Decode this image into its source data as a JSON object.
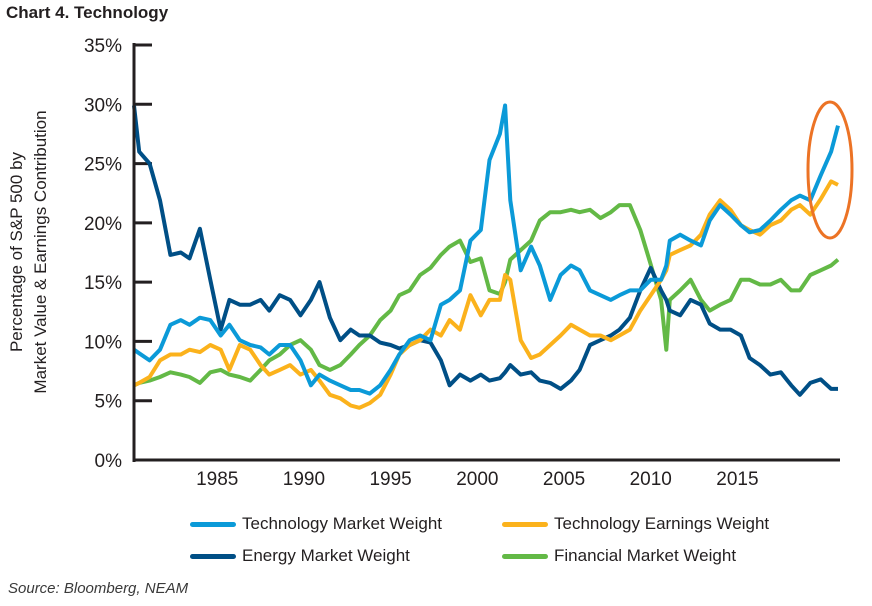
{
  "title": "Chart 4. Technology",
  "source": "Source: Bloomberg, NEAM",
  "chart_data": {
    "type": "line",
    "title": "Chart 4. Technology",
    "ylabel": [
      "Percentage of S&P 500 by",
      "Market Value & Earnings Contribution"
    ],
    "xlabel": "",
    "ylim": [
      0,
      35
    ],
    "xlim": [
      1980.2,
      2020.8
    ],
    "yticks": [
      "0%",
      "5%",
      "10%",
      "15%",
      "20%",
      "25%",
      "30%",
      "35%"
    ],
    "ytick_values": [
      0,
      5,
      10,
      15,
      20,
      25,
      30,
      35
    ],
    "xticks": [
      "1985",
      "1990",
      "1995",
      "2000",
      "2005",
      "2010",
      "2015"
    ],
    "xtick_values": [
      1985,
      1990,
      1995,
      2000,
      2005,
      2010,
      2015
    ],
    "grid": false,
    "legend_position": "bottom",
    "x": [
      1980.2,
      1980.5,
      1981.1,
      1981.7,
      1982.3,
      1982.9,
      1983.4,
      1984.0,
      1984.6,
      1985.2,
      1985.7,
      1986.3,
      1986.9,
      1987.5,
      1988.0,
      1988.6,
      1989.2,
      1989.8,
      1990.4,
      1990.9,
      1991.5,
      1992.1,
      1992.7,
      1993.2,
      1993.8,
      1994.4,
      1995.0,
      1995.5,
      1996.1,
      1996.7,
      1997.3,
      1997.9,
      1998.4,
      1999.0,
      1999.6,
      2000.2,
      2000.7,
      2001.3,
      2001.6,
      2001.9,
      2002.5,
      2003.1,
      2003.6,
      2004.2,
      2004.8,
      2005.4,
      2005.9,
      2006.5,
      2007.1,
      2007.7,
      2008.2,
      2008.8,
      2009.4,
      2010.0,
      2010.6,
      2010.9,
      2011.1,
      2011.7,
      2012.3,
      2012.9,
      2013.4,
      2014.0,
      2014.6,
      2015.2,
      2015.7,
      2016.3,
      2016.9,
      2017.5,
      2018.1,
      2018.6,
      2019.2,
      2019.8,
      2020.4,
      2020.8
    ],
    "series": [
      {
        "name": "Technology Market Weight",
        "color": "#0b9ad8",
        "values": [
          9.3,
          9.0,
          8.4,
          9.3,
          11.4,
          11.8,
          11.4,
          12.0,
          11.8,
          10.5,
          11.4,
          10.1,
          9.7,
          9.5,
          8.9,
          9.7,
          9.7,
          8.4,
          6.3,
          7.2,
          6.7,
          6.3,
          5.9,
          5.9,
          5.6,
          6.3,
          7.6,
          8.9,
          10.1,
          10.5,
          10.1,
          13.1,
          13.5,
          14.3,
          18.5,
          19.4,
          25.3,
          27.5,
          29.9,
          21.9,
          16.0,
          18.0,
          16.4,
          13.5,
          15.6,
          16.4,
          16.0,
          14.3,
          13.9,
          13.5,
          13.9,
          14.3,
          14.3,
          15.2,
          15.2,
          16.4,
          18.5,
          19.0,
          18.5,
          18.1,
          20.2,
          21.5,
          20.7,
          19.8,
          19.2,
          19.4,
          20.2,
          21.1,
          21.9,
          22.3,
          21.9,
          24.0,
          26.0,
          28.2
        ]
      },
      {
        "name": "Technology Earnings Weight",
        "color": "#fbb21c",
        "values": [
          6.3,
          6.5,
          7.0,
          8.4,
          8.9,
          8.9,
          9.3,
          9.1,
          9.7,
          9.3,
          7.6,
          9.7,
          9.3,
          8.0,
          7.2,
          7.6,
          8.0,
          7.2,
          7.6,
          6.7,
          5.5,
          5.2,
          4.6,
          4.4,
          4.8,
          5.5,
          7.2,
          8.9,
          9.7,
          10.1,
          11.0,
          10.5,
          11.8,
          11.0,
          13.9,
          12.2,
          13.5,
          13.5,
          15.6,
          15.2,
          10.1,
          8.6,
          8.9,
          9.7,
          10.5,
          11.4,
          11.0,
          10.5,
          10.5,
          10.1,
          10.5,
          11.0,
          12.6,
          13.9,
          15.2,
          16.0,
          17.3,
          17.7,
          18.1,
          19.0,
          20.7,
          21.9,
          21.1,
          19.8,
          19.4,
          19.0,
          19.8,
          20.2,
          21.1,
          21.5,
          20.7,
          22.0,
          23.5,
          23.2
        ]
      },
      {
        "name": "Energy Market Weight",
        "color": "#004f86",
        "values": [
          29.9,
          26.0,
          25.0,
          21.9,
          17.3,
          17.5,
          17.0,
          19.5,
          15.2,
          11.0,
          13.5,
          13.1,
          13.1,
          13.5,
          12.6,
          13.9,
          13.5,
          12.2,
          13.5,
          15.0,
          12.0,
          10.1,
          11.0,
          10.5,
          10.5,
          9.9,
          9.7,
          9.4,
          9.7,
          10.1,
          9.9,
          8.4,
          6.3,
          7.2,
          6.7,
          7.2,
          6.7,
          6.9,
          7.4,
          8.0,
          7.2,
          7.4,
          6.7,
          6.5,
          6.0,
          6.7,
          7.6,
          9.7,
          10.1,
          10.5,
          11.0,
          12.0,
          14.3,
          16.2,
          14.3,
          13.5,
          12.6,
          12.2,
          13.5,
          13.1,
          11.5,
          11.0,
          11.0,
          10.5,
          8.6,
          8.0,
          7.2,
          7.4,
          6.3,
          5.5,
          6.5,
          6.8,
          6.0,
          6.0
        ]
      },
      {
        "name": "Financial Market Weight",
        "color": "#63b946",
        "values": [
          6.3,
          6.5,
          6.7,
          7.0,
          7.4,
          7.2,
          7.0,
          6.5,
          7.4,
          7.6,
          7.2,
          7.0,
          6.7,
          7.6,
          8.4,
          8.9,
          9.7,
          10.1,
          9.3,
          8.0,
          7.6,
          8.0,
          8.9,
          9.7,
          10.5,
          11.8,
          12.6,
          13.9,
          14.3,
          15.6,
          16.2,
          17.3,
          18.0,
          18.5,
          16.7,
          17.0,
          14.3,
          14.0,
          15.0,
          16.9,
          17.7,
          18.5,
          20.2,
          20.9,
          20.9,
          21.1,
          20.9,
          21.1,
          20.4,
          20.9,
          21.5,
          21.5,
          19.4,
          16.5,
          13.5,
          9.3,
          13.5,
          14.3,
          15.2,
          13.5,
          12.6,
          13.1,
          13.5,
          15.2,
          15.2,
          14.8,
          14.8,
          15.2,
          14.3,
          14.3,
          15.6,
          16.0,
          16.4,
          16.9
        ]
      }
    ],
    "annotation": {
      "shape": "ellipse",
      "color": "#ec7325"
    }
  },
  "legend": {
    "items": [
      {
        "label": "Technology Market Weight",
        "color": "#0b9ad8"
      },
      {
        "label": "Technology Earnings Weight",
        "color": "#fbb21c"
      },
      {
        "label": "Energy Market Weight",
        "color": "#004f86"
      },
      {
        "label": "Financial Market Weight",
        "color": "#63b946"
      }
    ]
  }
}
